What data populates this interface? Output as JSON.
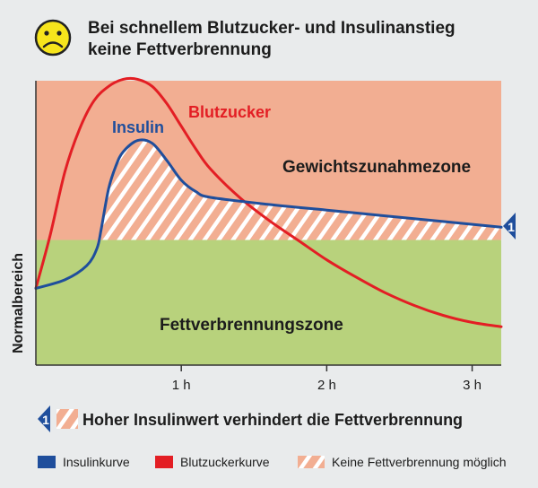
{
  "header": {
    "icon": "sad-face-icon",
    "title_line1": "Bei schnellem Blutzucker- und Insulinanstieg",
    "title_line2": "keine Fettverbrennung"
  },
  "chart_data": {
    "type": "line",
    "x_unit": "h",
    "xlim": [
      0,
      3.2
    ],
    "x_ticks": [
      1,
      2,
      3
    ],
    "x_tick_labels": [
      "1 h",
      "2 h",
      "3 h"
    ],
    "ylabel": "Normalbereich",
    "y_scale": "relative (no numeric axis)",
    "ylim": [
      0,
      100
    ],
    "normal_level": 44,
    "zones": [
      {
        "name": "Gewichtszunahmezone",
        "from": 44,
        "to": 100,
        "color": "#f2ae92"
      },
      {
        "name": "Fettverbrennungszone",
        "from": 0,
        "to": 44,
        "color": "#b8d27c"
      }
    ],
    "series": [
      {
        "name": "Blutzucker",
        "color": "#e31e24",
        "points": [
          [
            0,
            27
          ],
          [
            0.1,
            46
          ],
          [
            0.2,
            68
          ],
          [
            0.3,
            83
          ],
          [
            0.4,
            93
          ],
          [
            0.5,
            98
          ],
          [
            0.6,
            100.5
          ],
          [
            0.7,
            100.5
          ],
          [
            0.8,
            98
          ],
          [
            0.9,
            92
          ],
          [
            1.0,
            84
          ],
          [
            1.1,
            76
          ],
          [
            1.2,
            69
          ],
          [
            1.4,
            59
          ],
          [
            1.6,
            51
          ],
          [
            1.8,
            44
          ],
          [
            2.0,
            37
          ],
          [
            2.2,
            31
          ],
          [
            2.4,
            25.5
          ],
          [
            2.6,
            21
          ],
          [
            2.8,
            17.5
          ],
          [
            3.0,
            15
          ],
          [
            3.2,
            13.5
          ]
        ]
      },
      {
        "name": "Insulin",
        "color": "#1f4e9c",
        "points": [
          [
            0,
            27
          ],
          [
            0.2,
            30
          ],
          [
            0.35,
            35
          ],
          [
            0.42,
            41
          ],
          [
            0.45,
            48
          ],
          [
            0.5,
            62
          ],
          [
            0.55,
            70
          ],
          [
            0.6,
            75
          ],
          [
            0.7,
            79
          ],
          [
            0.8,
            78
          ],
          [
            0.9,
            72
          ],
          [
            1.0,
            65
          ],
          [
            1.1,
            61
          ],
          [
            1.2,
            59
          ],
          [
            1.6,
            56.5
          ],
          [
            2.0,
            54.5
          ],
          [
            2.4,
            52.5
          ],
          [
            2.8,
            50.5
          ],
          [
            3.2,
            48.5
          ]
        ]
      }
    ],
    "annotations": [
      {
        "marker": "1",
        "text": "Hoher Insulinwert verhindert die Fettverbrennung"
      }
    ],
    "legend": {
      "placement": "bottom",
      "items": [
        {
          "label": "Insulinkurve",
          "color": "#1f4e9c",
          "kind": "swatch"
        },
        {
          "label": "Blutzuckerkurve",
          "color": "#e31e24",
          "kind": "swatch"
        },
        {
          "label": "Keine Fettverbrennung möglich",
          "color": "#f2ae92",
          "kind": "hatch"
        }
      ]
    }
  }
}
